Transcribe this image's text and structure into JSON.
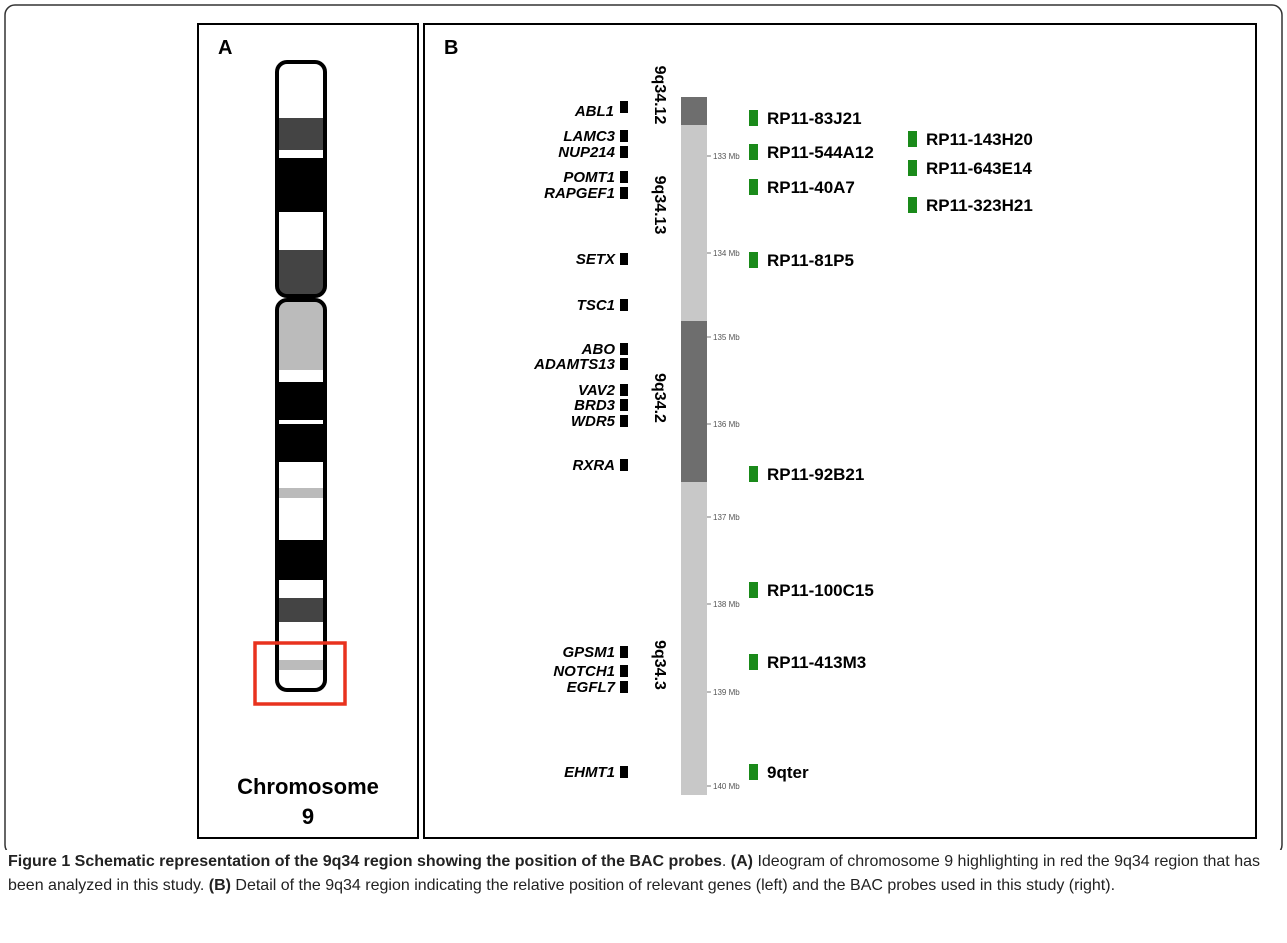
{
  "figure": {
    "panel_a": {
      "label": "A",
      "chromosome_label": [
        "Chromosome",
        "9"
      ]
    },
    "panel_b": {
      "label": "B",
      "bands": [
        "9q34.12",
        "9q34.13",
        "9q34.2",
        "9q34.3"
      ],
      "ticks": [
        "133 Mb",
        "134 Mb",
        "135 Mb",
        "136 Mb",
        "137 Mb",
        "138 Mb",
        "139 Mb",
        "140 Mb"
      ],
      "genes": [
        "ABL1",
        "LAMC3",
        "NUP214",
        "POMT1",
        "RAPGEF1",
        "SETX",
        "TSC1",
        "ABO",
        "ADAMTS13",
        "VAV2",
        "BRD3",
        "WDR5",
        "RXRA",
        "GPSM1",
        "NOTCH1",
        "EGFL7",
        "EHMT1"
      ],
      "probes": [
        "RP11-83J21",
        "RP11-544A12",
        "RP11-40A7",
        "RP11-81P5",
        "RP11-92B21",
        "RP11-100C15",
        "RP11-413M3",
        "9qter",
        "RP11-143H20",
        "RP11-643E14",
        "RP11-323H21"
      ]
    },
    "caption": {
      "title": "Figure 1 Schematic representation of the 9q34 region showing the position of the BAC probes",
      "sep": ".",
      "a_label": "(A)",
      "a_text": "Ideogram of chromosome 9 highlighting in red the 9q34 region that has been analyzed in this study.",
      "b_label": "(B)",
      "b_text": "Detail of the 9q34 region indicating the relative position of relevant genes (left) and the BAC probes used in this study (right)."
    }
  }
}
